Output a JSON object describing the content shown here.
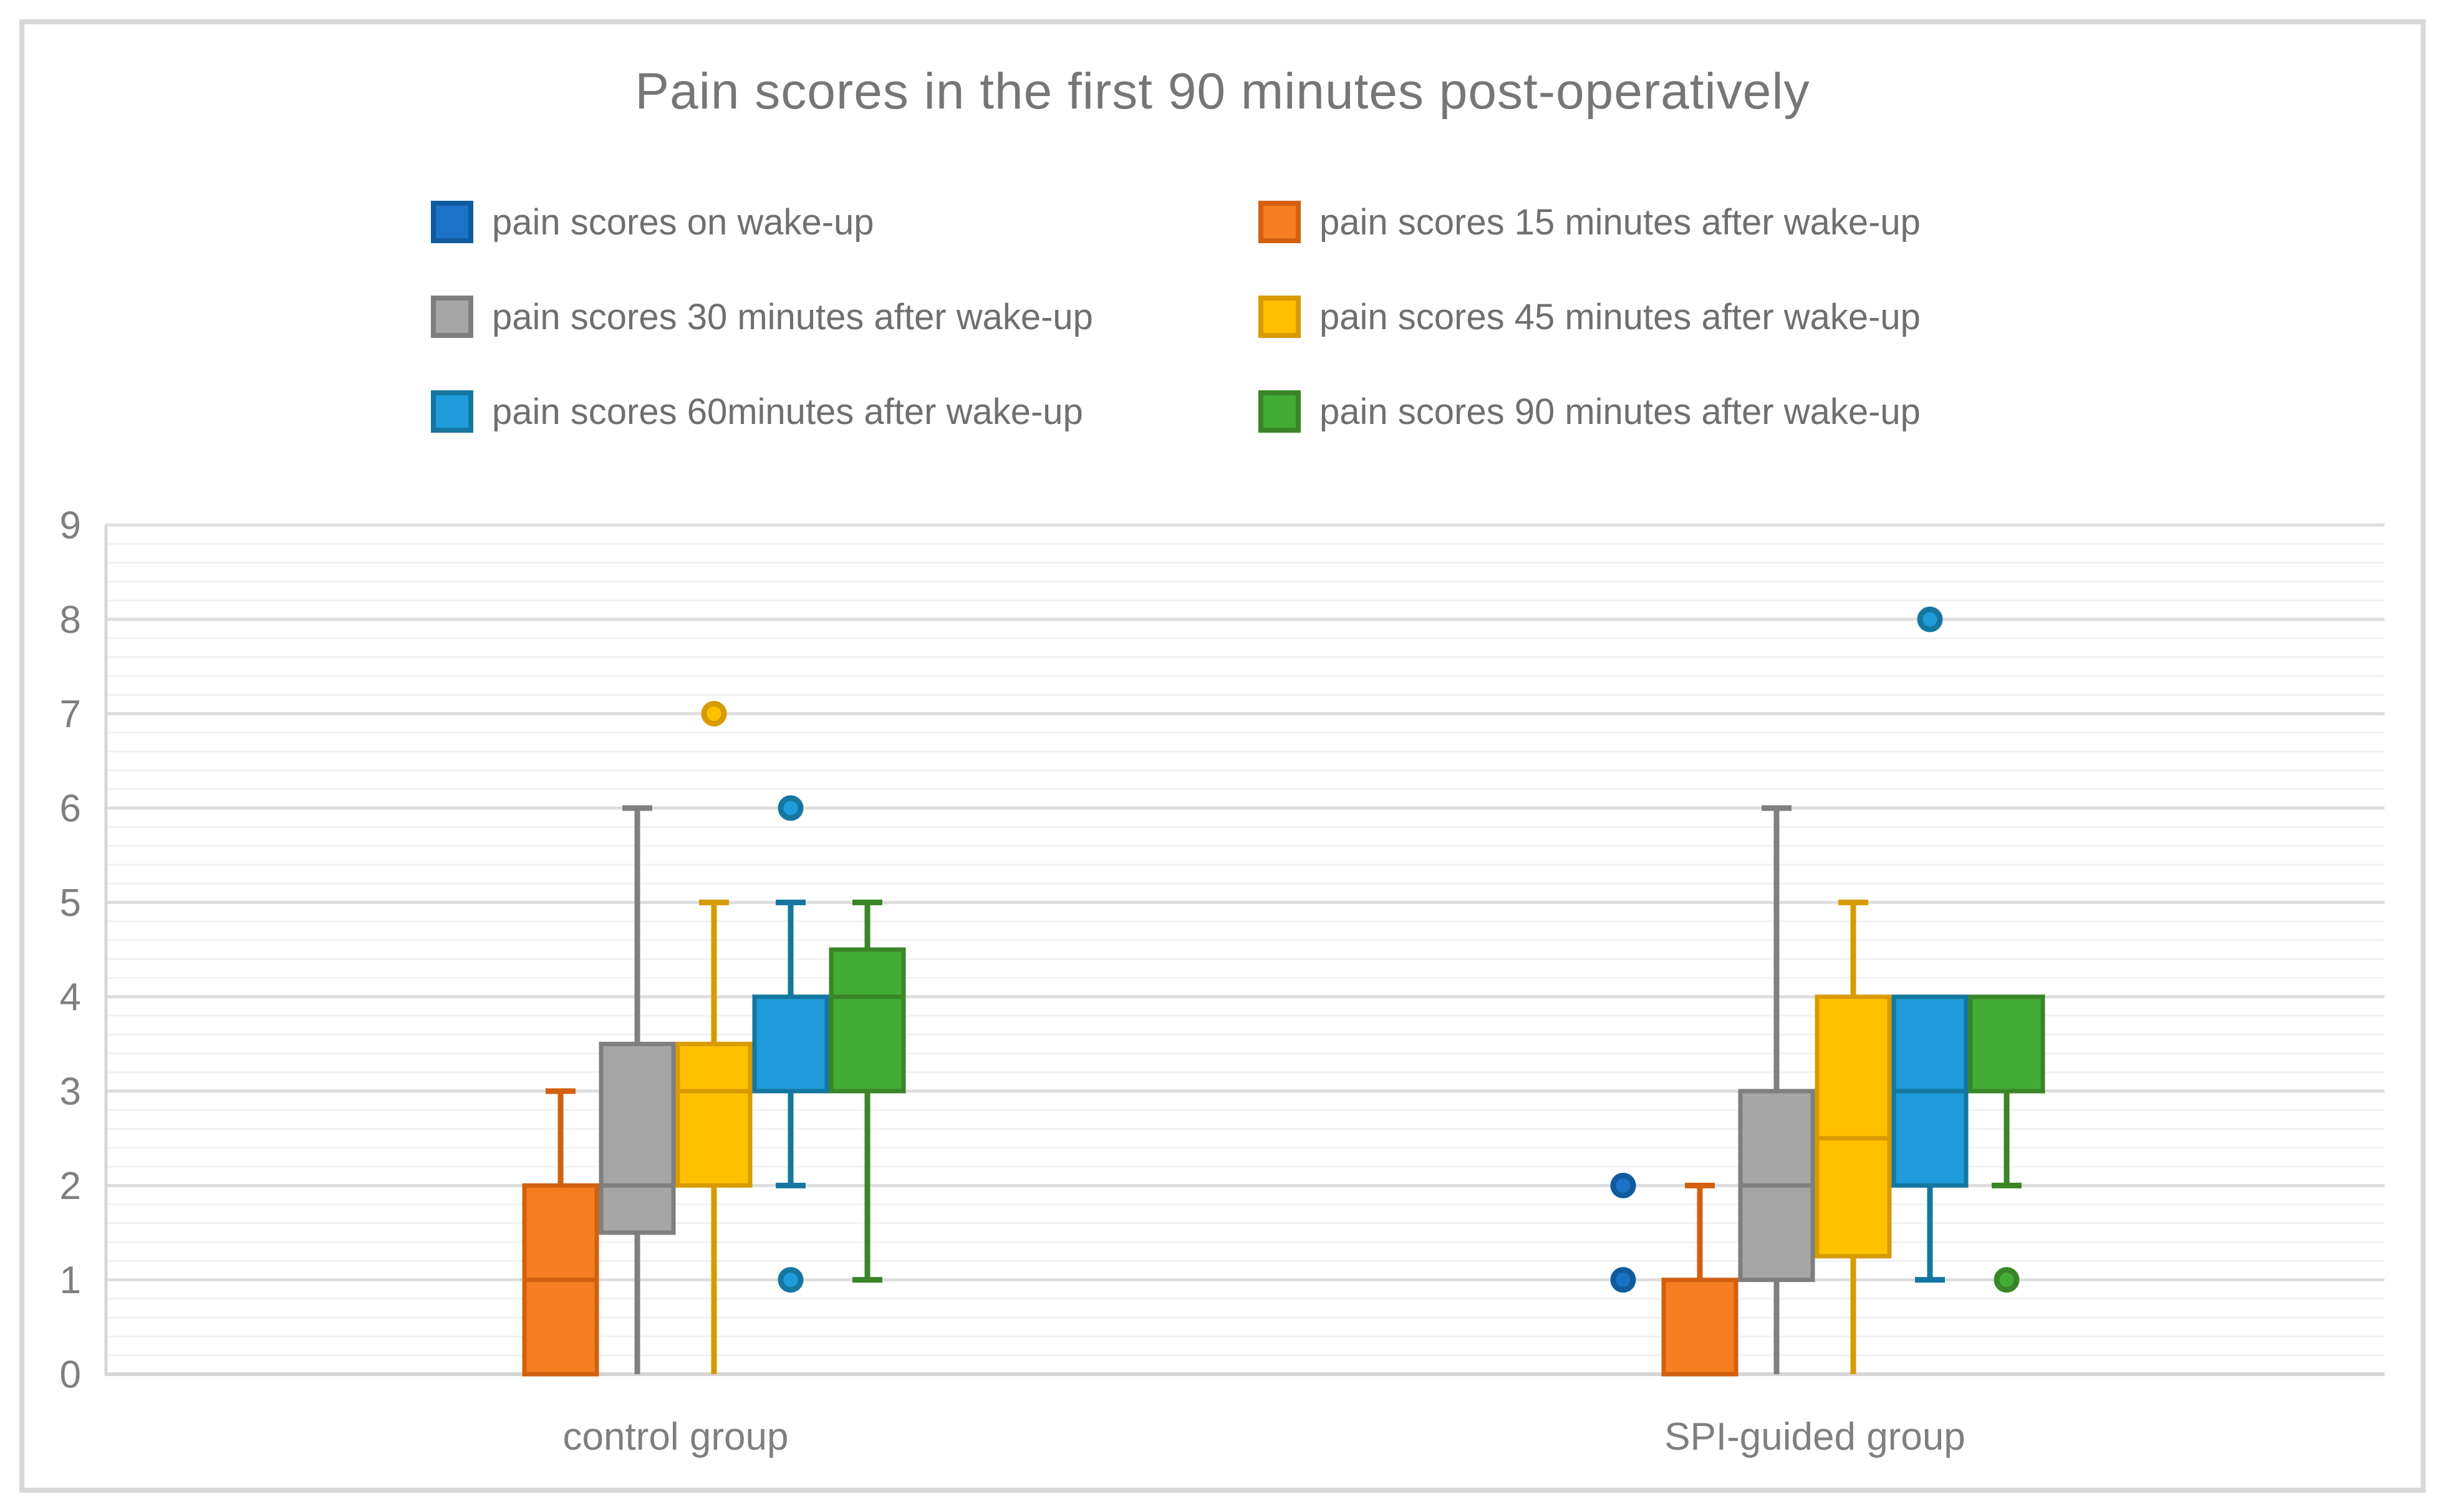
{
  "title": "Pain scores in the first 90 minutes post-operatively",
  "legend": {
    "items": [
      {
        "label": "pain scores on wake-up"
      },
      {
        "label": "pain scores 15 minutes after wake-up"
      },
      {
        "label": "pain scores 30 minutes after wake-up"
      },
      {
        "label": "pain scores 45 minutes after wake-up"
      },
      {
        "label": "pain scores 60minutes after wake-up"
      },
      {
        "label": "pain scores 90 minutes after wake-up"
      }
    ]
  },
  "y_axis": {
    "min": 0,
    "max": 9,
    "tick_labels": [
      "0",
      "1",
      "2",
      "3",
      "4",
      "5",
      "6",
      "7",
      "8",
      "9"
    ],
    "minor_step": 0.2
  },
  "x_axis": {
    "categories": [
      "control group",
      "SPI-guided group"
    ]
  },
  "colors": {
    "title_text": "#767676",
    "legend_text": "#6f6f6f",
    "axis_text": "#7f7f7f",
    "major_gridline": "#dedede",
    "minor_gridline": "#f2f2f2",
    "axis_line": "#d6d6d6",
    "chart_border": "#d9d9d9"
  },
  "chart_data": {
    "type": "boxplot",
    "title": "Pain scores in the first 90 minutes post-operatively",
    "categories": [
      "control group",
      "SPI-guided group"
    ],
    "ylim": [
      0,
      9
    ],
    "grid": {
      "major_step": 1,
      "minor_step": 0.2
    },
    "legend_position": "top",
    "series": [
      {
        "name": "pain scores on wake-up",
        "fill": "#1a73c6",
        "stroke": "#0f5b9e",
        "groups": [
          {
            "category": "control group",
            "box": null,
            "outliers": []
          },
          {
            "category": "SPI-guided group",
            "box": null,
            "outliers": [
              2,
              1
            ]
          }
        ]
      },
      {
        "name": "pain scores 15 minutes after wake-up",
        "fill": "#f57e20",
        "stroke": "#d2600f",
        "groups": [
          {
            "category": "control group",
            "box": {
              "q1": 0,
              "median": 1,
              "q3": 2,
              "whisker_low": null,
              "whisker_high": 3
            },
            "outliers": []
          },
          {
            "category": "SPI-guided group",
            "box": {
              "q1": 0,
              "median": null,
              "q3": 1,
              "whisker_low": null,
              "whisker_high": 2
            },
            "outliers": []
          }
        ]
      },
      {
        "name": "pain scores 30 minutes after wake-up",
        "fill": "#a6a6a6",
        "stroke": "#7f7f7f",
        "groups": [
          {
            "category": "control group",
            "box": {
              "q1": 1.5,
              "median": 2,
              "q3": 3.5,
              "whisker_low": 0,
              "whisker_high": 6
            },
            "outliers": []
          },
          {
            "category": "SPI-guided group",
            "box": {
              "q1": 1,
              "median": 2,
              "q3": 3,
              "whisker_low": 0,
              "whisker_high": 6
            },
            "outliers": []
          }
        ]
      },
      {
        "name": "pain scores 45 minutes after wake-up",
        "fill": "#ffc000",
        "stroke": "#d79b00",
        "groups": [
          {
            "category": "control group",
            "box": {
              "q1": 2,
              "median": 3,
              "q3": 3.5,
              "whisker_low": 0,
              "whisker_high": 5
            },
            "outliers": [
              7
            ]
          },
          {
            "category": "SPI-guided group",
            "box": {
              "q1": 1.25,
              "median": 2.5,
              "q3": 4,
              "whisker_low": 0,
              "whisker_high": 5
            },
            "outliers": []
          }
        ]
      },
      {
        "name": "pain scores 60minutes after wake-up",
        "fill": "#1f9cd9",
        "stroke": "#15779f",
        "groups": [
          {
            "category": "control group",
            "box": {
              "q1": 3,
              "median": null,
              "q3": 4,
              "whisker_low": 2,
              "whisker_high": 5
            },
            "outliers": [
              6,
              1
            ]
          },
          {
            "category": "SPI-guided group",
            "box": {
              "q1": 2,
              "median": 3,
              "q3": 4,
              "whisker_low": 1,
              "whisker_high": null
            },
            "outliers": [
              8
            ]
          }
        ]
      },
      {
        "name": "pain scores 90 minutes after wake-up",
        "fill": "#43ac35",
        "stroke": "#398527",
        "groups": [
          {
            "category": "control group",
            "box": {
              "q1": 3,
              "median": 4,
              "q3": 4.5,
              "whisker_low": 1,
              "whisker_high": 5
            },
            "outliers": []
          },
          {
            "category": "SPI-guided group",
            "box": {
              "q1": 3,
              "median": null,
              "q3": 4,
              "whisker_low": 2,
              "whisker_high": null
            },
            "outliers": [
              1
            ]
          }
        ]
      }
    ]
  }
}
